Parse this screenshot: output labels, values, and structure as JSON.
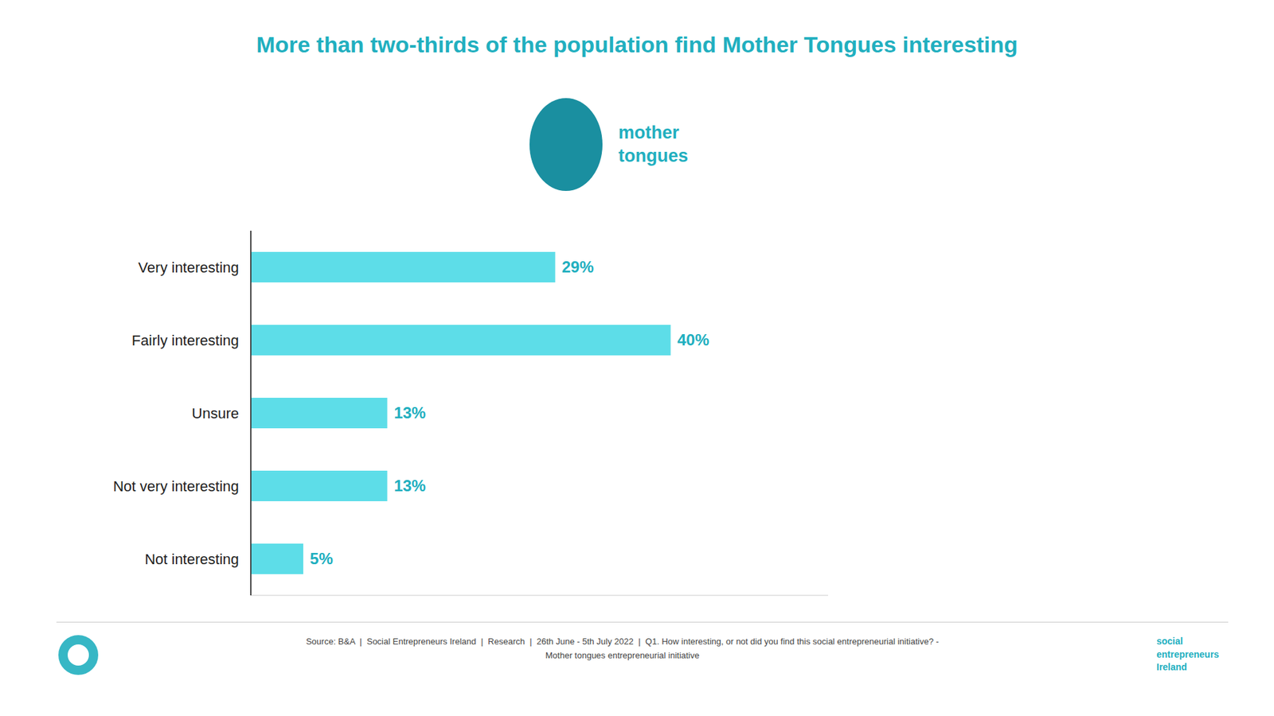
{
  "chart_data": {
    "type": "bar",
    "orientation": "horizontal",
    "title": "More than two-thirds of the population find Mother Tongues interesting",
    "categories": [
      "Very interesting",
      "Fairly interesting",
      "Unsure",
      "Not very interesting",
      "Not interesting"
    ],
    "values": [
      29,
      40,
      13,
      13,
      5
    ],
    "value_labels": [
      "29%",
      "40%",
      "13%",
      "13%",
      "5%"
    ],
    "data_labels": true,
    "color": "#5DDDE8",
    "xlim": [
      0,
      55
    ],
    "grid": false,
    "tick_labels": "y",
    "annotations": [
      "mother\ntongues",
      "Source: B&A  |  Social Entrepreneurs Ireland  |  Research  |  26th June - 5th July 2022  |  Q1. How interesting, or not did you find this social entrepreneurial initiative? -\nMother tongues entrepreneurial initiative",
      "social\nentrepreneurs\nIreland"
    ]
  }
}
